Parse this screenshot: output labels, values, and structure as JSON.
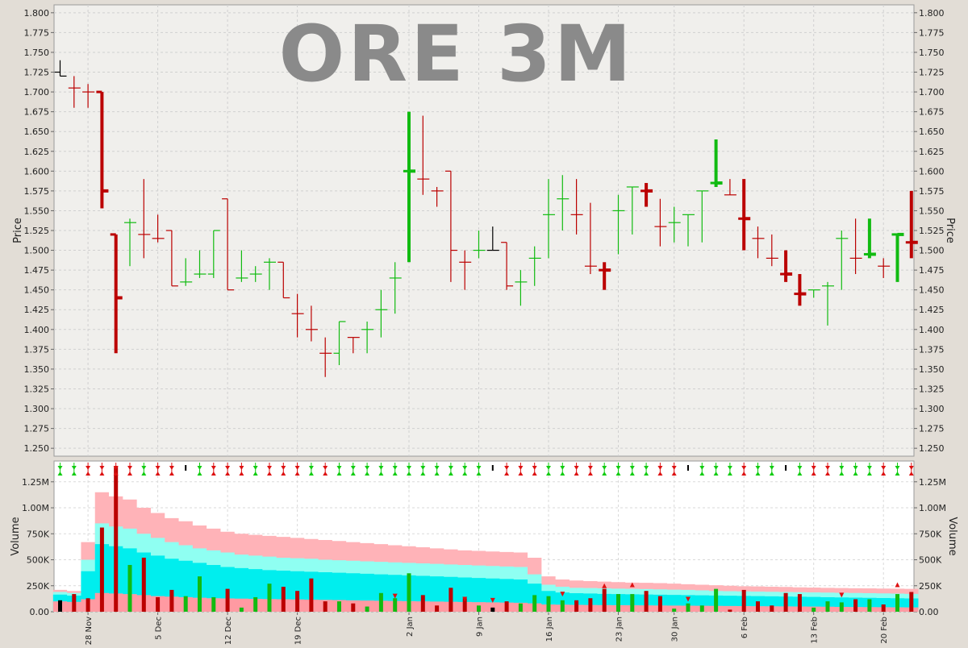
{
  "chart_data": {
    "type": "ohlc",
    "title": "ORE 3M",
    "price_axis": {
      "label": "Price",
      "range": [
        1.24,
        1.81
      ],
      "ticks": [
        1.25,
        1.275,
        1.3,
        1.325,
        1.35,
        1.375,
        1.4,
        1.425,
        1.45,
        1.475,
        1.5,
        1.525,
        1.55,
        1.575,
        1.6,
        1.625,
        1.65,
        1.675,
        1.7,
        1.725,
        1.75,
        1.775,
        1.8
      ]
    },
    "volume_axis": {
      "label": "Volume",
      "range": [
        0,
        1450000
      ],
      "ticks": [
        0,
        250000,
        500000,
        750000,
        1000000,
        1250000
      ],
      "tick_labels": [
        "0.00",
        "250K",
        "500K",
        "750K",
        "1.00M",
        "1.25M"
      ]
    },
    "x_tick_labels": [
      {
        "label": "28 Nov",
        "index": 2
      },
      {
        "label": "5 Dec",
        "index": 7
      },
      {
        "label": "12 Dec",
        "index": 12
      },
      {
        "label": "19 Dec",
        "index": 17
      },
      {
        "label": "2 Jan",
        "index": 25
      },
      {
        "label": "9 Jan",
        "index": 30
      },
      {
        "label": "16 Jan",
        "index": 35
      },
      {
        "label": "23 Jan",
        "index": 40
      },
      {
        "label": "30 Jan",
        "index": 44
      },
      {
        "label": "6 Feb",
        "index": 49
      },
      {
        "label": "13 Feb",
        "index": 54
      },
      {
        "label": "20 Feb",
        "index": 59
      }
    ],
    "colors": {
      "up": "#11bb11",
      "down": "#bb0000",
      "flat": "#000000",
      "band_outer": "#ffb3b8",
      "band_inner": "#8ffff2",
      "band_core": "#00eeee",
      "band_base": "#ff9aa2",
      "title": "#8a8a8a"
    },
    "grid": true,
    "bars": [
      {
        "o": 1.725,
        "h": 1.74,
        "l": 1.72,
        "c": 1.72,
        "v": 110000,
        "dir": "flat",
        "bold": false
      },
      {
        "o": 1.705,
        "h": 1.72,
        "l": 1.68,
        "c": 1.705,
        "v": 170000,
        "dir": "down",
        "bold": false
      },
      {
        "o": 1.7,
        "h": 1.71,
        "l": 1.68,
        "c": 1.7,
        "v": 130000,
        "dir": "down",
        "bold": false
      },
      {
        "o": 1.7,
        "h": 1.7,
        "l": 1.553,
        "c": 1.575,
        "v": 810000,
        "dir": "down",
        "bold": true
      },
      {
        "o": 1.52,
        "h": 1.52,
        "l": 1.37,
        "c": 1.44,
        "v": 1400000,
        "dir": "down",
        "bold": true
      },
      {
        "o": 1.535,
        "h": 1.54,
        "l": 1.48,
        "c": 1.535,
        "v": 450000,
        "dir": "up",
        "bold": false
      },
      {
        "o": 1.52,
        "h": 1.59,
        "l": 1.49,
        "c": 1.52,
        "v": 520000,
        "dir": "down",
        "bold": false
      },
      {
        "o": 1.515,
        "h": 1.545,
        "l": 1.51,
        "c": 1.515,
        "v": 140000,
        "dir": "down",
        "bold": false
      },
      {
        "o": 1.525,
        "h": 1.525,
        "l": 1.455,
        "c": 1.455,
        "v": 210000,
        "dir": "down",
        "bold": false
      },
      {
        "o": 1.46,
        "h": 1.49,
        "l": 1.455,
        "c": 1.46,
        "v": 150000,
        "dir": "up",
        "bold": false
      },
      {
        "o": 1.47,
        "h": 1.5,
        "l": 1.465,
        "c": 1.47,
        "v": 340000,
        "dir": "up",
        "bold": false
      },
      {
        "o": 1.47,
        "h": 1.525,
        "l": 1.465,
        "c": 1.525,
        "v": 140000,
        "dir": "up",
        "bold": false
      },
      {
        "o": 1.565,
        "h": 1.565,
        "l": 1.45,
        "c": 1.45,
        "v": 220000,
        "dir": "down",
        "bold": false
      },
      {
        "o": 1.465,
        "h": 1.5,
        "l": 1.46,
        "c": 1.465,
        "v": 40000,
        "dir": "up",
        "bold": false
      },
      {
        "o": 1.47,
        "h": 1.48,
        "l": 1.46,
        "c": 1.47,
        "v": 140000,
        "dir": "up",
        "bold": false
      },
      {
        "o": 1.485,
        "h": 1.49,
        "l": 1.45,
        "c": 1.485,
        "v": 270000,
        "dir": "up",
        "bold": false
      },
      {
        "o": 1.485,
        "h": 1.485,
        "l": 1.44,
        "c": 1.44,
        "v": 240000,
        "dir": "down",
        "bold": false
      },
      {
        "o": 1.42,
        "h": 1.445,
        "l": 1.39,
        "c": 1.42,
        "v": 200000,
        "dir": "down",
        "bold": false
      },
      {
        "o": 1.4,
        "h": 1.43,
        "l": 1.385,
        "c": 1.4,
        "v": 320000,
        "dir": "down",
        "bold": false
      },
      {
        "o": 1.37,
        "h": 1.39,
        "l": 1.34,
        "c": 1.37,
        "v": 100000,
        "dir": "down",
        "bold": false
      },
      {
        "o": 1.37,
        "h": 1.41,
        "l": 1.355,
        "c": 1.41,
        "v": 100000,
        "dir": "up",
        "bold": false
      },
      {
        "o": 1.39,
        "h": 1.39,
        "l": 1.37,
        "c": 1.39,
        "v": 80000,
        "dir": "down",
        "bold": false
      },
      {
        "o": 1.4,
        "h": 1.41,
        "l": 1.37,
        "c": 1.4,
        "v": 50000,
        "dir": "up",
        "bold": false
      },
      {
        "o": 1.425,
        "h": 1.45,
        "l": 1.39,
        "c": 1.425,
        "v": 180000,
        "dir": "up",
        "bold": false
      },
      {
        "o": 1.465,
        "h": 1.485,
        "l": 1.42,
        "c": 1.465,
        "v": 130000,
        "dir": "up",
        "bold": false
      },
      {
        "o": 1.6,
        "h": 1.675,
        "l": 1.485,
        "c": 1.6,
        "v": 370000,
        "dir": "up",
        "bold": true
      },
      {
        "o": 1.59,
        "h": 1.67,
        "l": 1.57,
        "c": 1.59,
        "v": 160000,
        "dir": "down",
        "bold": false
      },
      {
        "o": 1.575,
        "h": 1.58,
        "l": 1.555,
        "c": 1.575,
        "v": 60000,
        "dir": "down",
        "bold": false
      },
      {
        "o": 1.6,
        "h": 1.6,
        "l": 1.46,
        "c": 1.5,
        "v": 230000,
        "dir": "down",
        "bold": false
      },
      {
        "o": 1.485,
        "h": 1.5,
        "l": 1.45,
        "c": 1.485,
        "v": 130000,
        "dir": "down",
        "bold": false
      },
      {
        "o": 1.5,
        "h": 1.525,
        "l": 1.49,
        "c": 1.5,
        "v": 60000,
        "dir": "up",
        "bold": false
      },
      {
        "o": 1.5,
        "h": 1.53,
        "l": 1.5,
        "c": 1.5,
        "v": 40000,
        "dir": "flat",
        "bold": false
      },
      {
        "o": 1.51,
        "h": 1.51,
        "l": 1.45,
        "c": 1.455,
        "v": 100000,
        "dir": "down",
        "bold": false
      },
      {
        "o": 1.46,
        "h": 1.475,
        "l": 1.43,
        "c": 1.46,
        "v": 80000,
        "dir": "up",
        "bold": false
      },
      {
        "o": 1.49,
        "h": 1.505,
        "l": 1.455,
        "c": 1.49,
        "v": 160000,
        "dir": "up",
        "bold": false
      },
      {
        "o": 1.545,
        "h": 1.59,
        "l": 1.49,
        "c": 1.545,
        "v": 150000,
        "dir": "up",
        "bold": false
      },
      {
        "o": 1.565,
        "h": 1.595,
        "l": 1.525,
        "c": 1.565,
        "v": 110000,
        "dir": "up",
        "bold": false
      },
      {
        "o": 1.545,
        "h": 1.59,
        "l": 1.52,
        "c": 1.545,
        "v": 110000,
        "dir": "down",
        "bold": false
      },
      {
        "o": 1.48,
        "h": 1.56,
        "l": 1.47,
        "c": 1.48,
        "v": 130000,
        "dir": "down",
        "bold": false
      },
      {
        "o": 1.475,
        "h": 1.485,
        "l": 1.45,
        "c": 1.475,
        "v": 220000,
        "dir": "down",
        "bold": true
      },
      {
        "o": 1.55,
        "h": 1.57,
        "l": 1.495,
        "c": 1.55,
        "v": 170000,
        "dir": "up",
        "bold": false
      },
      {
        "o": 1.58,
        "h": 1.58,
        "l": 1.52,
        "c": 1.58,
        "v": 170000,
        "dir": "up",
        "bold": false
      },
      {
        "o": 1.575,
        "h": 1.585,
        "l": 1.555,
        "c": 1.575,
        "v": 200000,
        "dir": "down",
        "bold": true
      },
      {
        "o": 1.53,
        "h": 1.565,
        "l": 1.505,
        "c": 1.53,
        "v": 150000,
        "dir": "down",
        "bold": false
      },
      {
        "o": 1.535,
        "h": 1.555,
        "l": 1.51,
        "c": 1.535,
        "v": 30000,
        "dir": "up",
        "bold": false
      },
      {
        "o": 1.545,
        "h": 1.545,
        "l": 1.505,
        "c": 1.545,
        "v": 80000,
        "dir": "up",
        "bold": false
      },
      {
        "o": 1.575,
        "h": 1.575,
        "l": 1.51,
        "c": 1.575,
        "v": 60000,
        "dir": "up",
        "bold": false
      },
      {
        "o": 1.585,
        "h": 1.64,
        "l": 1.58,
        "c": 1.585,
        "v": 220000,
        "dir": "up",
        "bold": true
      },
      {
        "o": 1.57,
        "h": 1.59,
        "l": 1.57,
        "c": 1.57,
        "v": 20000,
        "dir": "down",
        "bold": false
      },
      {
        "o": 1.54,
        "h": 1.59,
        "l": 1.5,
        "c": 1.54,
        "v": 210000,
        "dir": "down",
        "bold": true
      },
      {
        "o": 1.515,
        "h": 1.53,
        "l": 1.49,
        "c": 1.515,
        "v": 100000,
        "dir": "down",
        "bold": false
      },
      {
        "o": 1.49,
        "h": 1.52,
        "l": 1.48,
        "c": 1.49,
        "v": 60000,
        "dir": "down",
        "bold": false
      },
      {
        "o": 1.47,
        "h": 1.5,
        "l": 1.46,
        "c": 1.47,
        "v": 180000,
        "dir": "down",
        "bold": true
      },
      {
        "o": 1.445,
        "h": 1.47,
        "l": 1.43,
        "c": 1.445,
        "v": 170000,
        "dir": "down",
        "bold": true
      },
      {
        "o": 1.45,
        "h": 1.45,
        "l": 1.44,
        "c": 1.45,
        "v": 40000,
        "dir": "up",
        "bold": false
      },
      {
        "o": 1.455,
        "h": 1.46,
        "l": 1.405,
        "c": 1.455,
        "v": 100000,
        "dir": "up",
        "bold": false
      },
      {
        "o": 1.515,
        "h": 1.525,
        "l": 1.45,
        "c": 1.515,
        "v": 90000,
        "dir": "up",
        "bold": false
      },
      {
        "o": 1.49,
        "h": 1.54,
        "l": 1.47,
        "c": 1.49,
        "v": 120000,
        "dir": "down",
        "bold": false
      },
      {
        "o": 1.495,
        "h": 1.54,
        "l": 1.49,
        "c": 1.495,
        "v": 120000,
        "dir": "up",
        "bold": true
      },
      {
        "o": 1.48,
        "h": 1.49,
        "l": 1.465,
        "c": 1.48,
        "v": 70000,
        "dir": "down",
        "bold": false
      },
      {
        "o": 1.52,
        "h": 1.52,
        "l": 1.46,
        "c": 1.52,
        "v": 170000,
        "dir": "up",
        "bold": true
      },
      {
        "o": 1.51,
        "h": 1.575,
        "l": 1.49,
        "c": 1.51,
        "v": 190000,
        "dir": "down",
        "bold": true
      }
    ],
    "volume_band": {
      "outer": [
        210000,
        200000,
        670000,
        1150000,
        1110000,
        1080000,
        1000000,
        950000,
        900000,
        870000,
        830000,
        800000,
        770000,
        750000,
        740000,
        730000,
        720000,
        710000,
        700000,
        690000,
        680000,
        670000,
        660000,
        650000,
        640000,
        630000,
        620000,
        610000,
        600000,
        590000,
        585000,
        580000,
        575000,
        570000,
        520000,
        340000,
        310000,
        300000,
        295000,
        290000,
        285000,
        280000,
        278000,
        275000,
        270000,
        265000,
        260000,
        255000,
        250000,
        245000,
        243000,
        240000,
        238000,
        235000,
        233000,
        230000,
        228000,
        226000,
        225000,
        223000,
        222000,
        220000
      ],
      "inner": [
        190000,
        180000,
        500000,
        850000,
        820000,
        800000,
        750000,
        710000,
        670000,
        640000,
        610000,
        590000,
        570000,
        550000,
        540000,
        530000,
        520000,
        515000,
        510000,
        500000,
        495000,
        490000,
        485000,
        480000,
        475000,
        470000,
        465000,
        460000,
        455000,
        450000,
        445000,
        440000,
        435000,
        430000,
        360000,
        260000,
        240000,
        230000,
        228000,
        225000,
        222000,
        220000,
        218000,
        215000,
        212000,
        210000,
        205000,
        200000,
        198000,
        196000,
        194000,
        192000,
        190000,
        188000,
        186000,
        184000,
        182000,
        180000,
        178000,
        176000,
        174000,
        172000
      ],
      "core": [
        165000,
        155000,
        390000,
        650000,
        630000,
        610000,
        570000,
        540000,
        510000,
        490000,
        470000,
        450000,
        430000,
        420000,
        410000,
        400000,
        395000,
        390000,
        385000,
        380000,
        375000,
        370000,
        365000,
        360000,
        355000,
        350000,
        345000,
        340000,
        335000,
        330000,
        325000,
        320000,
        315000,
        310000,
        270000,
        200000,
        185000,
        178000,
        175000,
        172000,
        170000,
        168000,
        166000,
        164000,
        162000,
        160000,
        158000,
        156000,
        154000,
        152000,
        150000,
        148000,
        146000,
        144000,
        142000,
        140000,
        138000,
        136000,
        134000,
        132000,
        130000,
        128000
      ],
      "base": [
        100000,
        95000,
        120000,
        180000,
        175000,
        170000,
        160000,
        150000,
        145000,
        140000,
        135000,
        130000,
        128000,
        126000,
        124000,
        122000,
        120000,
        118000,
        116000,
        114000,
        112000,
        110000,
        108000,
        106000,
        104000,
        102000,
        100000,
        98000,
        96000,
        94000,
        92000,
        90000,
        88000,
        86000,
        80000,
        70000,
        68000,
        66000,
        65000,
        64000,
        63000,
        62000,
        61000,
        60000,
        59000,
        58000,
        57000,
        56000,
        55000,
        54000,
        53000,
        52000,
        51000,
        50000,
        49000,
        48000,
        47000,
        46000,
        45000,
        44000,
        43000,
        42000
      ]
    },
    "top_signals": [
      "up",
      "up",
      "both",
      "both",
      "both",
      "both",
      "up",
      "both",
      "both",
      "flat",
      "up",
      "both",
      "both",
      "both",
      "up",
      "both",
      "both",
      "both",
      "up",
      "both",
      "up",
      "up",
      "up",
      "up",
      "up",
      "up",
      "up",
      "up",
      "up",
      "up",
      "up",
      "flat",
      "both",
      "both",
      "both",
      "up",
      "up",
      "both",
      "both",
      "up",
      "up",
      "up",
      "up",
      "both",
      "both",
      "flat",
      "up",
      "up",
      "up",
      "both",
      "up",
      "up",
      "flat",
      "up",
      "both",
      "both",
      "up",
      "up",
      "up",
      "both",
      "up",
      "both"
    ],
    "markers": [
      {
        "i": 24,
        "dir": "down",
        "v": 150000
      },
      {
        "i": 29,
        "dir": "down",
        "v": 120000
      },
      {
        "i": 31,
        "dir": "down",
        "v": 110000
      },
      {
        "i": 36,
        "dir": "down",
        "v": 170000
      },
      {
        "i": 39,
        "dir": "up",
        "v": 250000
      },
      {
        "i": 41,
        "dir": "up",
        "v": 260000
      },
      {
        "i": 45,
        "dir": "down",
        "v": 120000
      },
      {
        "i": 56,
        "dir": "down",
        "v": 160000
      },
      {
        "i": 60,
        "dir": "up",
        "v": 260000
      }
    ]
  }
}
